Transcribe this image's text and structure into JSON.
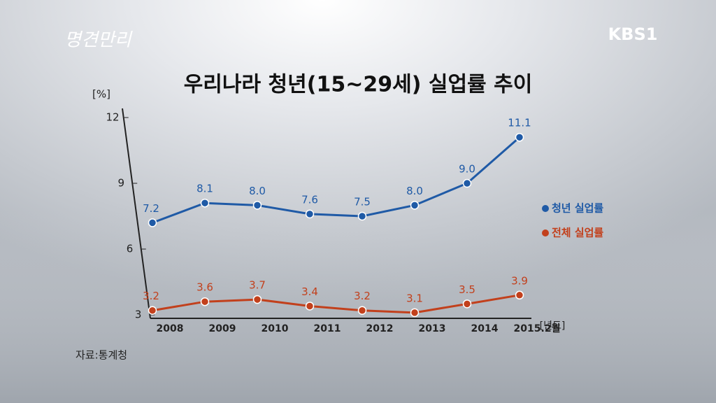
{
  "chart_data": {
    "type": "line",
    "title": "우리나라 청년(15~29세) 실업률 추이",
    "logo": "명견만리",
    "channel": "KBS1",
    "source": "자료:통계청",
    "ylabel": "[%]",
    "xlabel": "[년도]",
    "categories": [
      "2008",
      "2009",
      "2010",
      "2011",
      "2012",
      "2013",
      "2014",
      "2015.2월"
    ],
    "series": [
      {
        "name": "청년 실업률",
        "color": "#1f5aa6",
        "values": [
          7.2,
          8.1,
          8.0,
          7.6,
          7.5,
          8.0,
          9.0,
          11.1
        ],
        "value_labels": [
          "7.2",
          "8.1",
          "8.0",
          "7.6",
          "7.5",
          "8.0",
          "9.0",
          "11.1"
        ]
      },
      {
        "name": "전체 실업률",
        "color": "#c2401c",
        "values": [
          3.2,
          3.6,
          3.7,
          3.4,
          3.2,
          3.1,
          3.5,
          3.9
        ],
        "value_labels": [
          "3.2",
          "3.6",
          "3.7",
          "3.4",
          "3.2",
          "3.1",
          "3.5",
          "3.9"
        ]
      }
    ],
    "ylim": [
      3,
      12
    ],
    "yticks": [
      3,
      6,
      9,
      12
    ],
    "grid": false,
    "legend": "right"
  }
}
